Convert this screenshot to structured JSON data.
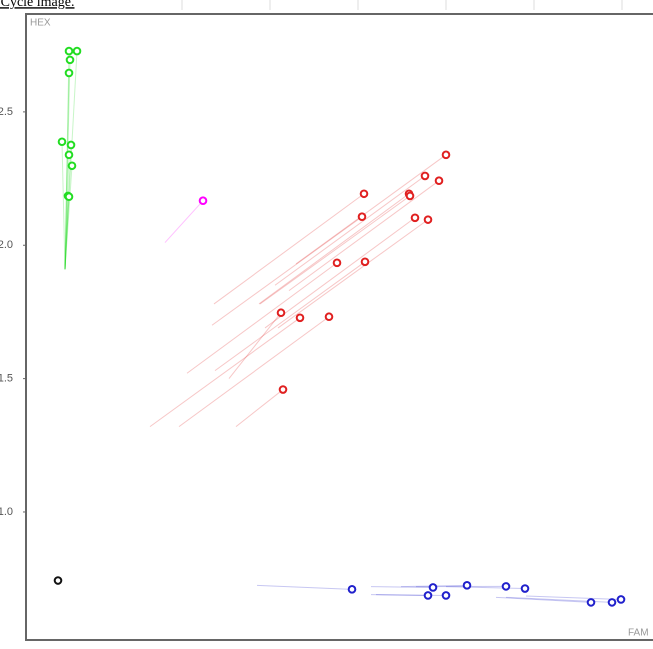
{
  "caption": "wo Cycle image.",
  "chart_data": {
    "type": "scatter",
    "ylabel": "HEX",
    "xlabel": "FAM",
    "xlim": [
      0,
      627
    ],
    "ylim": [
      0.52,
      2.867
    ],
    "yticks": [
      {
        "value": 1,
        "label": "1.0"
      },
      1.5,
      {
        "value": 2,
        "label": "2.0"
      },
      2.5
    ],
    "series": [
      {
        "color": "#22dd22",
        "x": [
          43,
          51,
          44,
          43,
          36,
          45,
          43,
          46,
          42,
          43
        ],
        "values": [
          2.728,
          2.728,
          2.695,
          2.646,
          2.388,
          2.376,
          2.339,
          2.298,
          2.185,
          2.182
        ],
        "trail_x": [
          39,
          39,
          39,
          39,
          39,
          39,
          39,
          39,
          39,
          39
        ],
        "trail_y": [
          1.91,
          1.91,
          1.91,
          1.91,
          1.91,
          1.91,
          1.91,
          1.91,
          1.91,
          1.91
        ]
      },
      {
        "color": "#e02020",
        "x": [
          420,
          399,
          413,
          338,
          383,
          384,
          336,
          389,
          402,
          311,
          339,
          255,
          274,
          303,
          257
        ],
        "values": [
          2.339,
          2.26,
          2.242,
          2.193,
          2.193,
          2.185,
          2.107,
          2.103,
          2.096,
          1.934,
          1.938,
          1.747,
          1.728,
          1.732,
          1.459
        ],
        "trail_x": [
          270,
          249,
          263,
          188,
          233,
          234,
          186,
          239,
          252,
          161,
          189,
          203,
          124,
          153,
          210
        ],
        "trail_y": [
          1.93,
          1.85,
          1.83,
          1.78,
          1.78,
          1.78,
          1.7,
          1.69,
          1.69,
          1.52,
          1.53,
          1.5,
          1.32,
          1.32,
          1.32
        ]
      },
      {
        "color": "#2020cc",
        "x": [
          326,
          407,
          441,
          480,
          499,
          402,
          420,
          565,
          586,
          595
        ],
        "values": [
          0.71,
          0.717,
          0.725,
          0.721,
          0.713,
          0.687,
          0.687,
          0.661,
          0.661,
          0.672
        ],
        "trail_x": [
          231,
          345,
          375,
          390,
          420,
          345,
          350,
          470,
          480,
          500
        ],
        "trail_y": [
          0.725,
          0.72,
          0.72,
          0.72,
          0.72,
          0.69,
          0.69,
          0.68,
          0.68,
          0.685
        ]
      },
      {
        "color": "#ff00ff",
        "x": [
          177
        ],
        "values": [
          2.167
        ],
        "trail_x": [
          139
        ],
        "trail_y": [
          2.01
        ]
      },
      {
        "color": "#111111",
        "x": [
          32
        ],
        "values": [
          0.743
        ]
      }
    ]
  }
}
